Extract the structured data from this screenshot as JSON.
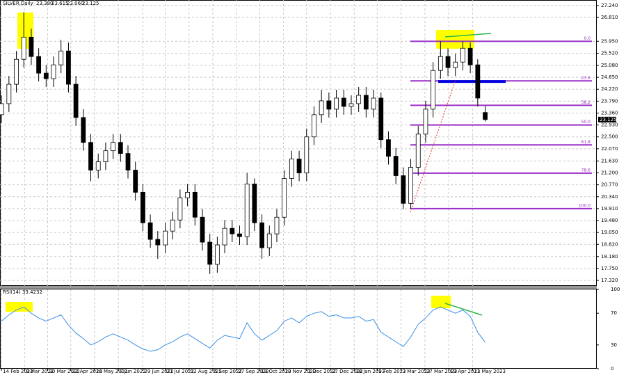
{
  "chart_data": [
    {
      "type": "candlestick",
      "title": "SILVER,Daily",
      "header_values": [
        "23.380",
        "23.615",
        "23.060",
        "23.125"
      ],
      "last_price_label": "23.125",
      "open": [
        23.3,
        23.7,
        24.4,
        25.3,
        26.1,
        25.4,
        24.8,
        24.6,
        25.1,
        25.6,
        24.4,
        23.2,
        22.3,
        21.3,
        21.6,
        22.0,
        22.3,
        21.9,
        21.3,
        20.5,
        19.4,
        18.8,
        18.6,
        19.1,
        19.5,
        20.3,
        20.5,
        19.6,
        18.7,
        17.9,
        18.6,
        19.2,
        19.0,
        18.9,
        20.8,
        19.4,
        18.5,
        19.0,
        19.6,
        21.0,
        21.7,
        21.2,
        22.5,
        23.3,
        23.8,
        23.5,
        23.9,
        23.6,
        23.7,
        24.0,
        23.5,
        23.9,
        22.4,
        21.8,
        21.1,
        20.1,
        21.4,
        22.6,
        23.5,
        24.9,
        25.4,
        25.0,
        25.2,
        25.7,
        25.1,
        23.38
      ],
      "high": [
        24.0,
        24.7,
        25.6,
        27.0,
        26.4,
        25.7,
        25.1,
        25.4,
        26.0,
        25.9,
        24.7,
        23.5,
        22.6,
        21.9,
        22.3,
        22.6,
        22.6,
        22.2,
        21.6,
        20.8,
        19.7,
        19.1,
        19.4,
        19.8,
        20.6,
        20.8,
        20.8,
        19.9,
        19.0,
        18.9,
        19.5,
        19.5,
        19.3,
        21.2,
        21.0,
        19.7,
        19.3,
        19.9,
        21.3,
        22.0,
        22.0,
        22.8,
        23.6,
        24.2,
        24.1,
        24.2,
        24.2,
        24.0,
        24.3,
        24.3,
        24.2,
        24.1,
        22.7,
        22.1,
        21.4,
        21.7,
        22.9,
        23.8,
        25.2,
        25.95,
        25.7,
        25.5,
        25.95,
        25.9,
        25.3,
        23.615
      ],
      "low": [
        23.0,
        23.4,
        24.1,
        25.0,
        25.1,
        24.5,
        24.3,
        24.3,
        24.8,
        24.1,
        22.9,
        22.0,
        20.9,
        21.0,
        21.3,
        21.7,
        21.6,
        21.0,
        20.2,
        19.1,
        18.5,
        18.1,
        18.3,
        18.8,
        19.2,
        20.0,
        19.3,
        18.4,
        17.55,
        17.6,
        18.3,
        18.7,
        18.6,
        18.6,
        19.1,
        18.1,
        18.2,
        18.7,
        19.3,
        20.7,
        20.9,
        20.9,
        22.2,
        23.0,
        23.2,
        23.2,
        23.3,
        23.3,
        23.4,
        23.2,
        23.2,
        22.1,
        21.5,
        20.8,
        19.9,
        19.9,
        21.1,
        22.3,
        23.2,
        24.6,
        24.7,
        24.7,
        24.9,
        24.8,
        23.6,
        23.06
      ],
      "close": [
        23.7,
        24.4,
        25.3,
        26.1,
        25.4,
        24.8,
        24.6,
        25.1,
        25.6,
        24.4,
        23.2,
        22.3,
        21.3,
        21.6,
        22.0,
        22.3,
        21.9,
        21.3,
        20.5,
        19.4,
        18.8,
        18.6,
        19.1,
        19.5,
        20.3,
        20.5,
        19.6,
        18.7,
        17.9,
        18.6,
        19.2,
        19.0,
        18.9,
        20.8,
        19.4,
        18.5,
        19.0,
        19.6,
        21.0,
        21.7,
        21.2,
        22.5,
        23.3,
        23.8,
        23.5,
        23.9,
        23.6,
        23.7,
        24.0,
        23.5,
        23.9,
        22.4,
        21.8,
        21.1,
        20.1,
        21.4,
        22.6,
        23.5,
        24.9,
        25.4,
        25.0,
        25.2,
        25.7,
        25.1,
        23.9,
        23.125
      ],
      "xlim": [
        -0.2,
        80
      ],
      "xticks": [
        {
          "value": 0,
          "label": "14 Feb 2022"
        },
        {
          "value": 3.1,
          "label": "8 Mar 2022"
        },
        {
          "value": 6.2,
          "label": "30 Mar 2022"
        },
        {
          "value": 9.3,
          "label": "22 Apr 2022"
        },
        {
          "value": 12.5,
          "label": "16 May 2022"
        },
        {
          "value": 15.7,
          "label": "7 Jun 2022"
        },
        {
          "value": 19,
          "label": "29 Jun 2022"
        },
        {
          "value": 22,
          "label": "21 Jul 2022"
        },
        {
          "value": 25.2,
          "label": "12 Aug 2022"
        },
        {
          "value": 28.4,
          "label": "5 Sep 2022"
        },
        {
          "value": 31.6,
          "label": "27 Sep 2022"
        },
        {
          "value": 34.7,
          "label": "19 Oct 2022"
        },
        {
          "value": 37.9,
          "label": "10 Nov 2022"
        },
        {
          "value": 41,
          "label": "2 Dec 2022"
        },
        {
          "value": 44.2,
          "label": "27 Dec 2022"
        },
        {
          "value": 47.4,
          "label": "18 Jan 2023"
        },
        {
          "value": 50.5,
          "label": "9 Feb 2023"
        },
        {
          "value": 53.7,
          "label": "3 Mar 2023"
        },
        {
          "value": 56.9,
          "label": "27 Mar 2023"
        },
        {
          "value": 60.1,
          "label": "19 Apr 2023"
        },
        {
          "value": 63.3,
          "label": "11 May 2023"
        }
      ],
      "ylim": [
        17.12,
        27.44
      ],
      "yticks": [
        {
          "value": 27.24,
          "label": "27.240"
        },
        {
          "value": 26.81,
          "label": "26.810"
        },
        {
          "value": 25.95,
          "label": "25.950"
        },
        {
          "value": 25.52,
          "label": "25.520"
        },
        {
          "value": 25.08,
          "label": "25.080"
        },
        {
          "value": 24.65,
          "label": "24.650"
        },
        {
          "value": 24.22,
          "label": "24.220"
        },
        {
          "value": 23.79,
          "label": "23.790"
        },
        {
          "value": 23.36,
          "label": "23.360"
        },
        {
          "value": 22.93,
          "label": "22.930"
        },
        {
          "value": 22.5,
          "label": "22.500"
        },
        {
          "value": 22.07,
          "label": "22.070"
        },
        {
          "value": 21.63,
          "label": "21.630"
        },
        {
          "value": 21.2,
          "label": "21.200"
        },
        {
          "value": 20.77,
          "label": "20.770"
        },
        {
          "value": 20.34,
          "label": "20.340"
        },
        {
          "value": 19.91,
          "label": "19.910"
        },
        {
          "value": 19.48,
          "label": "19.480"
        },
        {
          "value": 19.05,
          "label": "19.050"
        },
        {
          "value": 18.62,
          "label": "18.620"
        },
        {
          "value": 18.18,
          "label": "18.180"
        },
        {
          "value": 17.75,
          "label": "17.750"
        },
        {
          "value": 17.32,
          "label": "17.320"
        }
      ],
      "grid": true,
      "fib_levels": [
        {
          "value": 25.95,
          "label": "0.0"
        },
        {
          "value": 24.52,
          "label": "23.6"
        },
        {
          "value": 23.64,
          "label": "38.2"
        },
        {
          "value": 22.93,
          "label": "50.0"
        },
        {
          "value": 22.21,
          "label": "61.8"
        },
        {
          "value": 21.19,
          "label": "78.6"
        },
        {
          "value": 19.91,
          "label": "100.0"
        }
      ],
      "fib_color": "#9a2fc8",
      "support_line": 24.5,
      "support_color": "#0000e0"
    },
    {
      "type": "line",
      "title": "RSI(14) 33.4232",
      "series": [
        {
          "name": "RSI(14)",
          "color": "#3a8ee6",
          "values": [
            60,
            68,
            74,
            78,
            70,
            64,
            60,
            64,
            68,
            55,
            45,
            38,
            30,
            34,
            40,
            44,
            40,
            36,
            30,
            25,
            22,
            24,
            30,
            34,
            40,
            44,
            38,
            32,
            26,
            36,
            42,
            40,
            38,
            58,
            44,
            36,
            42,
            48,
            60,
            64,
            58,
            66,
            70,
            72,
            66,
            68,
            64,
            64,
            66,
            60,
            62,
            46,
            40,
            34,
            28,
            40,
            56,
            64,
            74,
            78,
            74,
            70,
            74,
            66,
            46,
            33.4232
          ]
        }
      ],
      "ylim": [
        0,
        100
      ],
      "yticks": [
        100,
        70,
        30,
        0
      ]
    }
  ]
}
